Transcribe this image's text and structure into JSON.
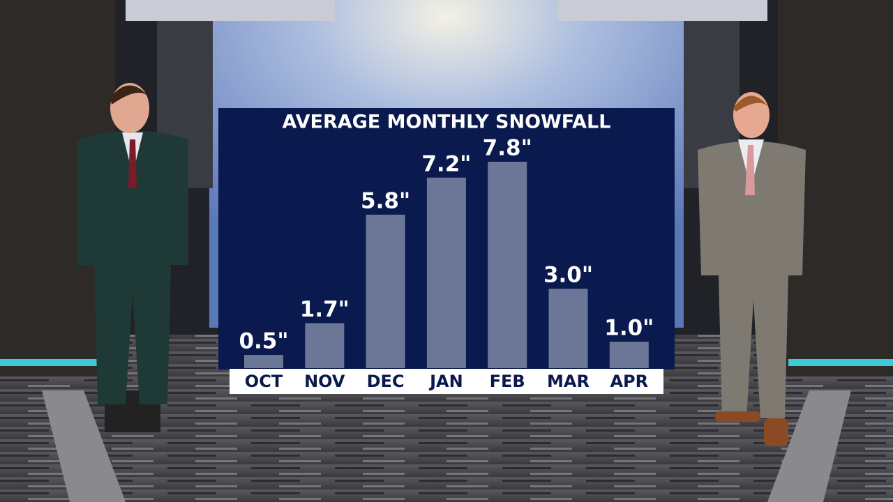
{
  "chart_data": {
    "type": "bar",
    "title": "AVERAGE MONTHLY SNOWFALL",
    "categories": [
      "OCT",
      "NOV",
      "DEC",
      "JAN",
      "FEB",
      "MAR",
      "APR"
    ],
    "values": [
      0.5,
      1.7,
      5.8,
      7.2,
      7.8,
      3.0,
      1.0
    ],
    "value_labels": [
      "0.5\"",
      "1.7\"",
      "5.8\"",
      "7.2\"",
      "7.8\"",
      "3.0\"",
      "1.0\""
    ],
    "color": "#6c7797"
  }
}
